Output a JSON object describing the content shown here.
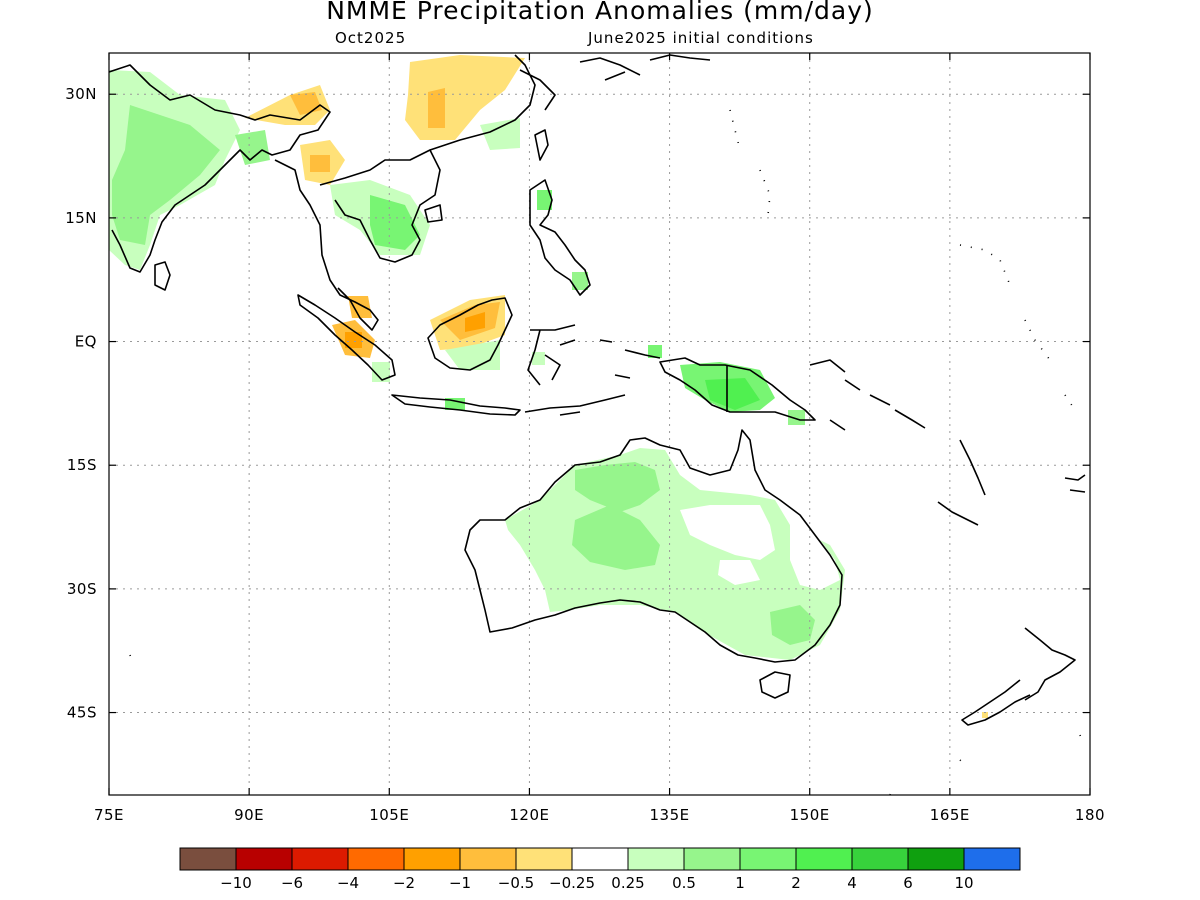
{
  "header": {
    "title": "NMME Precipitation Anomalies (mm/day)",
    "target_month": "Oct2025",
    "initial_conditions": "June2025 initial conditions"
  },
  "axes": {
    "lat_labels": [
      {
        "lat": 30,
        "text": "30N"
      },
      {
        "lat": 15,
        "text": "15N"
      },
      {
        "lat": 0,
        "text": "EQ"
      },
      {
        "lat": -15,
        "text": "15S"
      },
      {
        "lat": -30,
        "text": "30S"
      },
      {
        "lat": -45,
        "text": "45S"
      }
    ],
    "lon_labels": [
      {
        "lon": 75,
        "text": "75E"
      },
      {
        "lon": 90,
        "text": "90E"
      },
      {
        "lon": 105,
        "text": "105E"
      },
      {
        "lon": 120,
        "text": "120E"
      },
      {
        "lon": 135,
        "text": "135E"
      },
      {
        "lon": 150,
        "text": "150E"
      },
      {
        "lon": 165,
        "text": "165E"
      },
      {
        "lon": 180,
        "text": "180"
      }
    ],
    "lon_range": [
      75,
      180
    ],
    "lat_range": [
      -55,
      35
    ],
    "grid": true
  },
  "legend": {
    "colors": [
      "#7a4e3e",
      "#b80000",
      "#dc1a00",
      "#ff6a00",
      "#ffa000",
      "#ffbe3c",
      "#ffe178",
      "#ffffff",
      "#c8ffbe",
      "#96f58c",
      "#78f573",
      "#50f050",
      "#37d23c",
      "#0fa00f",
      "#1e6eeb"
    ],
    "labels": [
      "−10",
      "−6",
      "−4",
      "−2",
      "−1",
      "−0.5",
      "−0.25",
      "0.25",
      "0.5",
      "1",
      "2",
      "4",
      "6",
      "10"
    ]
  },
  "chart_data": {
    "type": "heatmap",
    "title": "NMME Precipitation Anomalies (mm/day)",
    "variable": "Precipitation anomaly",
    "units": "mm/day",
    "valid_month": "Oct2025",
    "initialization": "June2025 initial conditions",
    "region": {
      "lon": [
        75,
        180
      ],
      "lat": [
        -55,
        35
      ]
    },
    "color_thresholds": [
      -10,
      -6,
      -4,
      -2,
      -1,
      -0.5,
      -0.25,
      0.25,
      0.5,
      1,
      2,
      4,
      6,
      10
    ],
    "features": [
      {
        "region": "India",
        "lon": [
          75,
          89
        ],
        "lat": [
          12,
          31
        ],
        "anomaly": 0.7
      },
      {
        "region": "Southern China",
        "lon": [
          110,
          124
        ],
        "lat": [
          25,
          35
        ],
        "anomaly": -0.5
      },
      {
        "region": "Indochina",
        "lon": [
          97,
          108
        ],
        "lat": [
          12,
          22
        ],
        "anomaly": 0.6
      },
      {
        "region": "Myanmar / Yunnan",
        "lon": [
          95,
          102
        ],
        "lat": [
          19,
          31
        ],
        "anomaly": -0.5
      },
      {
        "region": "Sumatra",
        "lon": [
          101,
          106
        ],
        "lat": [
          -1,
          4
        ],
        "anomaly": -0.6
      },
      {
        "region": "Borneo",
        "lon": [
          112,
          119
        ],
        "lat": [
          -1,
          4
        ],
        "anomaly": -0.6
      },
      {
        "region": "New Guinea",
        "lon": [
          139,
          147
        ],
        "lat": [
          -9,
          -3
        ],
        "anomaly": 1.5
      },
      {
        "region": "Northern Australia",
        "lon": [
          123,
          140
        ],
        "lat": [
          -28,
          -14
        ],
        "anomaly": 0.6
      },
      {
        "region": "Eastern Australia",
        "lon": [
          145,
          154
        ],
        "lat": [
          -38,
          -28
        ],
        "anomaly": 0.5
      }
    ]
  }
}
